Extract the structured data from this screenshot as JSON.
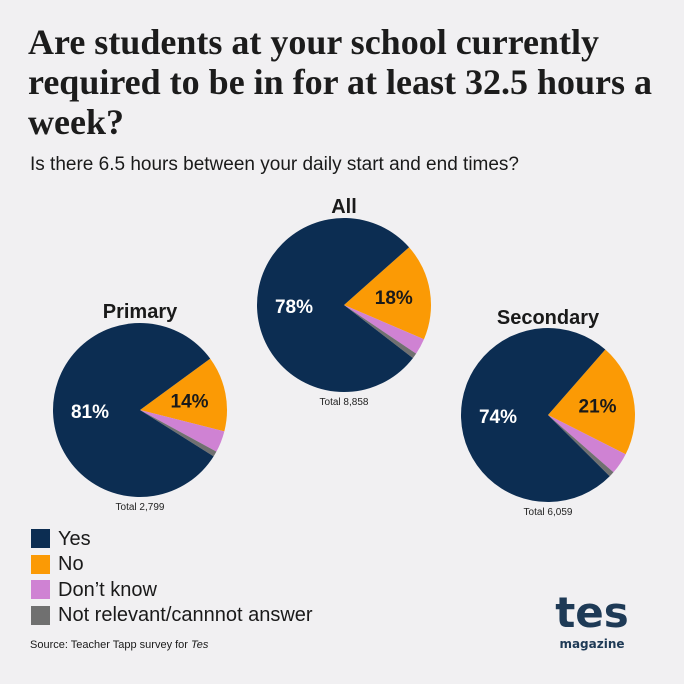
{
  "title": "Are students at your school currently required to be in for at least 32.5 hours a week?",
  "subtitle": "Is there 6.5 hours between your daily start and end times?",
  "colors": {
    "yes": "#0c2d52",
    "no": "#fb9a05",
    "dont_know": "#cf82d3",
    "not_relevant": "#707070",
    "background": "#f1f0f2"
  },
  "legend": [
    {
      "label": "Yes",
      "key": "yes"
    },
    {
      "label": "No",
      "key": "no"
    },
    {
      "label": "Don’t know",
      "key": "dont_know"
    },
    {
      "label": "Not relevant/cannnot answer",
      "key": "not_relevant"
    }
  ],
  "chart_data": [
    {
      "type": "pie",
      "title": "All",
      "total": "Total 8,858",
      "categories": [
        "Yes",
        "No",
        "Don’t know",
        "Not relevant/cannnot answer"
      ],
      "values": [
        78,
        18,
        3,
        1
      ],
      "labels": [
        "78%",
        "18%"
      ]
    },
    {
      "type": "pie",
      "title": "Primary",
      "total": "Total 2,799",
      "categories": [
        "Yes",
        "No",
        "Don’t know",
        "Not relevant/cannnot answer"
      ],
      "values": [
        81,
        14,
        4,
        1
      ],
      "labels": [
        "81%",
        "14%"
      ]
    },
    {
      "type": "pie",
      "title": "Secondary",
      "total": "Total 6,059",
      "categories": [
        "Yes",
        "No",
        "Don’t know",
        "Not relevant/cannnot answer"
      ],
      "values": [
        74,
        21,
        4,
        1
      ],
      "labels": [
        "74%",
        "21%"
      ]
    }
  ],
  "source_prefix": "Source: Teacher Tapp survey for ",
  "source_italic": "Tes",
  "logo": {
    "main": "tes",
    "sub": "magazine"
  }
}
